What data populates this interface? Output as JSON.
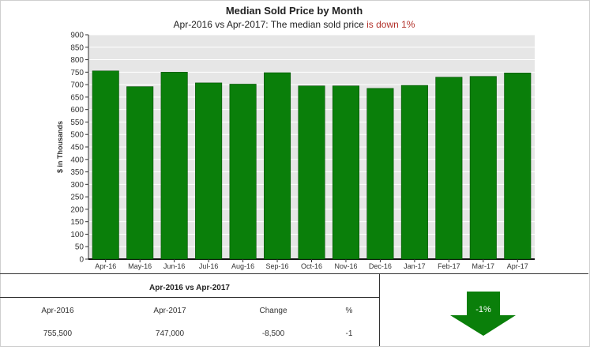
{
  "header": {
    "title": "Median Sold Price by Month",
    "subtitle_prefix": "Apr-2016 vs Apr-2017: The median sold price ",
    "subtitle_highlight": "is down 1%"
  },
  "chart_data": {
    "type": "bar",
    "title": "Median Sold Price by Month",
    "ylabel": "$ in Thousands",
    "xlabel": "",
    "categories": [
      "Apr-16",
      "May-16",
      "Jun-16",
      "Jul-16",
      "Aug-16",
      "Sep-16",
      "Oct-16",
      "Nov-16",
      "Dec-16",
      "Jan-17",
      "Feb-17",
      "Mar-17",
      "Apr-17"
    ],
    "values": [
      755,
      692,
      750,
      707,
      702,
      748,
      695,
      695,
      685,
      697,
      730,
      733,
      747
    ],
    "ylim": [
      0,
      900
    ],
    "yticks": [
      0,
      50,
      100,
      150,
      200,
      250,
      300,
      350,
      400,
      450,
      500,
      550,
      600,
      650,
      700,
      750,
      800,
      850,
      900
    ],
    "grid": true,
    "colors": {
      "bar": "#0a7f0a",
      "bar_edge": "#064f06",
      "plot_bg": "#e6e6e6",
      "grid": "#ffffff"
    }
  },
  "summary": {
    "title": "Apr-2016 vs Apr-2017",
    "headers": [
      "Apr-2016",
      "Apr-2017",
      "Change",
      "%"
    ],
    "values": [
      "755,500",
      "747,000",
      "-8,500",
      "-1"
    ]
  },
  "indicator": {
    "label": "-1%",
    "direction": "down",
    "color": "#0a7f0a"
  }
}
